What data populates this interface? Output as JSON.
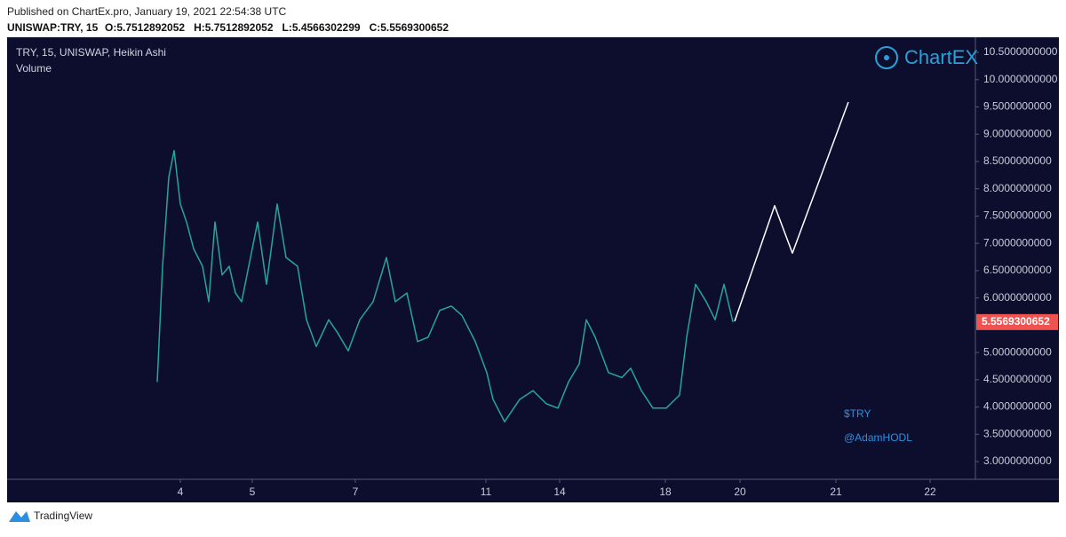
{
  "header": {
    "published": "Published on ChartEx.pro, January 19, 2021 22:54:38 UTC",
    "symbol": "UNISWAP:TRY, 15",
    "ohlc": [
      "O:5.7512892052",
      "H:5.7512892052",
      "L:5.4566302299",
      "C:5.5569300652"
    ]
  },
  "chart_data": {
    "type": "line",
    "title": "TRY, 15, UNISWAP, Heikin Ashi",
    "subtitle": "Volume",
    "xlim": [
      0,
      1090
    ],
    "xticks": [
      {
        "value": 195,
        "label": "4"
      },
      {
        "value": 276,
        "label": "5"
      },
      {
        "value": 392,
        "label": "7"
      },
      {
        "value": 539,
        "label": "11"
      },
      {
        "value": 622,
        "label": "14"
      },
      {
        "value": 741,
        "label": "18"
      },
      {
        "value": 825,
        "label": "20"
      },
      {
        "value": 933,
        "label": "21"
      },
      {
        "value": 1039,
        "label": "22"
      }
    ],
    "ylim": [
      2.675,
      10.777
    ],
    "yticks": [
      {
        "value": 10.5,
        "label": "10.5000000000"
      },
      {
        "value": 10,
        "label": "10.0000000000"
      },
      {
        "value": 9.5,
        "label": "9.5000000000"
      },
      {
        "value": 9,
        "label": "9.0000000000"
      },
      {
        "value": 8.5,
        "label": "8.5000000000"
      },
      {
        "value": 8,
        "label": "8.0000000000"
      },
      {
        "value": 7.5,
        "label": "7.5000000000"
      },
      {
        "value": 7,
        "label": "7.0000000000"
      },
      {
        "value": 6.5,
        "label": "6.5000000000"
      },
      {
        "value": 6,
        "label": "6.0000000000"
      },
      {
        "value": 5,
        "label": "5.0000000000"
      },
      {
        "value": 4.5,
        "label": "4.5000000000"
      },
      {
        "value": 4,
        "label": "4.0000000000"
      },
      {
        "value": 3.5,
        "label": "3.5000000000"
      },
      {
        "value": 3,
        "label": "3.0000000000"
      }
    ],
    "last_price": {
      "value": 5.5569300652,
      "label": "5.5569300652",
      "color": "#ef5350"
    },
    "series": [
      {
        "color": "#26a69a",
        "x": [
          169,
          175,
          182,
          188,
          195,
          202,
          210,
          220,
          227,
          234,
          242,
          250,
          257,
          264,
          272,
          282,
          292,
          304,
          314,
          327,
          337,
          348,
          362,
          372,
          384,
          397,
          412,
          427,
          437,
          450,
          462,
          474,
          487,
          500,
          512,
          527,
          540,
          547,
          560,
          577,
          592,
          607,
          620,
          632,
          644,
          652,
          662,
          677,
          692,
          702,
          714,
          727,
          742,
          757,
          765,
          775,
          787,
          797,
          807,
          817
        ],
        "values": [
          4.46,
          6.58,
          8.21,
          8.7,
          7.72,
          7.39,
          6.9,
          6.58,
          5.93,
          7.39,
          6.42,
          6.58,
          6.09,
          5.93,
          6.58,
          7.39,
          6.25,
          7.72,
          6.74,
          6.58,
          5.6,
          5.11,
          5.6,
          5.36,
          5.03,
          5.6,
          5.93,
          6.74,
          5.93,
          6.09,
          5.2,
          5.28,
          5.77,
          5.85,
          5.68,
          5.2,
          4.63,
          4.14,
          3.73,
          4.14,
          4.3,
          4.06,
          3.98,
          4.46,
          4.79,
          5.6,
          5.28,
          4.63,
          4.54,
          4.71,
          4.3,
          3.98,
          3.98,
          4.22,
          5.28,
          6.25,
          5.93,
          5.6,
          6.25,
          5.56
        ]
      },
      {
        "color": "#ffffff",
        "x": [
          819,
          864,
          884,
          947
        ],
        "values": [
          5.57,
          7.69,
          6.82,
          9.59
        ]
      }
    ]
  },
  "watermark": "ChartEX",
  "annotations": [
    "$TRY",
    "@AdamHODL"
  ],
  "footer": "TradingView"
}
